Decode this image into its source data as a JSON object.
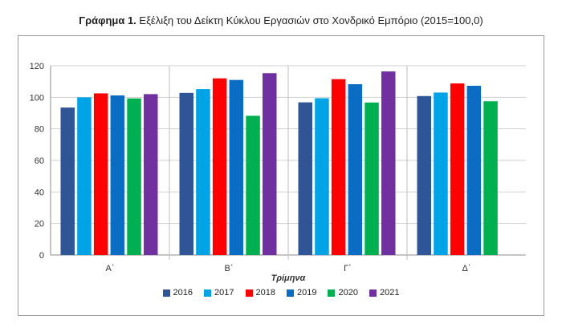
{
  "title": {
    "bold": "Γράφημα 1.",
    "text": " Εξέλιξη του Δείκτη Κύκλου Εργασιών στο Χονδρικό Εμπόριο (2015=100,0)"
  },
  "chart_data": {
    "type": "bar",
    "title": "Γράφημα 1. Εξέλιξη του Δείκτη Κύκλου Εργασιών στο Χονδρικό Εμπόριο (2015=100,0)",
    "xlabel": "Τρίμηνα",
    "ylabel": "",
    "ylim": [
      0,
      120
    ],
    "yticks": [
      0,
      20,
      40,
      60,
      80,
      100,
      120
    ],
    "grid": true,
    "legend": "bottom",
    "categories": [
      "Α΄",
      "Β΄",
      "Γ΄",
      "Δ΄"
    ],
    "series": [
      {
        "name": "2016",
        "color": "#2f5597",
        "values": [
          93.5,
          102.8,
          96.8,
          100.8
        ]
      },
      {
        "name": "2017",
        "color": "#00a3e6",
        "values": [
          100.0,
          105.2,
          99.4,
          103.0
        ]
      },
      {
        "name": "2018",
        "color": "#ff0000",
        "values": [
          102.5,
          112.0,
          111.5,
          108.8
        ]
      },
      {
        "name": "2019",
        "color": "#0b6cc4",
        "values": [
          101.2,
          111.0,
          108.3,
          107.3
        ]
      },
      {
        "name": "2020",
        "color": "#00b050",
        "values": [
          99.3,
          88.3,
          96.7,
          97.5
        ]
      },
      {
        "name": "2021",
        "color": "#7030a0",
        "values": [
          102.0,
          115.3,
          116.4,
          null
        ]
      }
    ]
  }
}
